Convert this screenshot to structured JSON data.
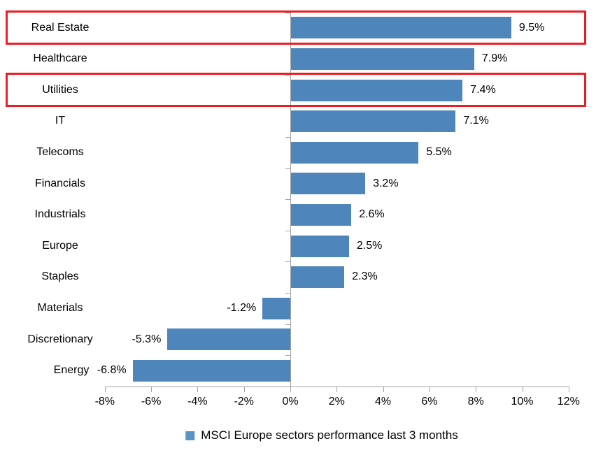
{
  "chart_data": {
    "type": "bar",
    "orientation": "horizontal",
    "title": "",
    "categories": [
      "Real Estate",
      "Healthcare",
      "Utilities",
      "IT",
      "Telecoms",
      "Financials",
      "Industrials",
      "Europe",
      "Staples",
      "Materials",
      "Discretionary",
      "Energy"
    ],
    "values": [
      9.5,
      7.9,
      7.4,
      7.1,
      5.5,
      3.2,
      2.6,
      2.5,
      2.3,
      -1.2,
      -5.3,
      -6.8
    ],
    "value_labels": [
      "9.5%",
      "7.9%",
      "7.4%",
      "7.1%",
      "5.5%",
      "3.2%",
      "2.6%",
      "2.5%",
      "2.3%",
      "-1.2%",
      "-5.3%",
      "-6.8%"
    ],
    "x_tick_labels": [
      "-8%",
      "-6%",
      "-4%",
      "-2%",
      "0%",
      "2%",
      "4%",
      "6%",
      "8%",
      "10%",
      "12%"
    ],
    "x_tick_values": [
      -8,
      -6,
      -4,
      -2,
      0,
      2,
      4,
      6,
      8,
      10,
      12
    ],
    "xlim": [
      -8,
      12
    ],
    "grid": false,
    "legend": "MSCI Europe sectors performance last 3 months",
    "legend_position": "bottom-center",
    "bar_color": "#4E86BC",
    "legend_marker_color": "#5B93C4",
    "axis_color": "#A3A3A3",
    "text_color": "#000000",
    "highlighted_categories": [
      "Real Estate",
      "Utilities"
    ],
    "highlight_color": "#ED1C24"
  }
}
